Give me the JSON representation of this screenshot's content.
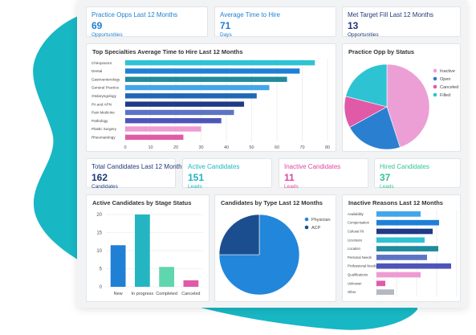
{
  "colors": {
    "background_blob": "#18b7c4",
    "kpi_blue": "#1f7fd1",
    "kpi_navy": "#20397a",
    "kpi_teal": "#1fb3c2",
    "kpi_pink": "#e0459f",
    "kpi_green": "#33c48f"
  },
  "kpis": {
    "practice_opps": {
      "title": "Practice Opps Last 12 Months",
      "value": "69",
      "unit": "Opportunities"
    },
    "avg_time_to_hire": {
      "title": "Average Time to Hire",
      "value": "71",
      "unit": "Days"
    },
    "met_target_fill": {
      "title": "Met Target Fill Last 12 Months",
      "value": "13",
      "unit": "Opportunities"
    },
    "total_candidates": {
      "title": "Total Candidates Last 12 Months",
      "value": "162",
      "unit": "Candidates"
    },
    "active_candidates": {
      "title": "Active Candidates",
      "value": "151",
      "unit": "Leads"
    },
    "inactive_candidates": {
      "title": "Inactive Candidates",
      "value": "11",
      "unit": "Leads"
    },
    "hired_candidates": {
      "title": "Hired Candidates",
      "value": "37",
      "unit": "Leads"
    }
  },
  "panels": {
    "specialties": {
      "title": "Top Specialties Average Time to Hire Last 12 Months"
    },
    "opp_status": {
      "title": "Practice Opp by Status"
    },
    "stage_status": {
      "title": "Active Candidates by Stage Status"
    },
    "by_type": {
      "title": "Candidates by Type  Last 12 Months"
    },
    "inactive_reasons": {
      "title": "Inactive Reasons Last 12 Months"
    }
  },
  "chart_data": [
    {
      "id": "specialties",
      "type": "bar",
      "orientation": "horizontal",
      "title": "Top Specialties Average Time to Hire Last 12 Months",
      "categories": [
        "Chiropractor",
        "Dental",
        "Gastroenterology",
        "General Practice",
        "Otolaryngology",
        "PA and APN",
        "Pain Medicine",
        "Pathology",
        "Plastic Surgery",
        "Rheumatology"
      ],
      "values": [
        75,
        69,
        64,
        57,
        52,
        47,
        43,
        38,
        30,
        23
      ],
      "colors": [
        "#2ec3d3",
        "#1e80d6",
        "#1f8b9c",
        "#41a6ea",
        "#1f66b6",
        "#1f3a86",
        "#5d73c4",
        "#4f55b8",
        "#ee9bd3",
        "#e05aa8"
      ],
      "xticks": [
        0,
        10,
        20,
        30,
        40,
        50,
        60,
        70,
        80
      ],
      "xlim": [
        0,
        80
      ],
      "grid": true
    },
    {
      "id": "opp_status",
      "type": "pie",
      "title": "Practice Opp by Status",
      "labels": [
        "Inactive",
        "Open",
        "Canceled",
        "Filled"
      ],
      "values": [
        45,
        22,
        12,
        21
      ],
      "colors": [
        "#ec9fd5",
        "#2b7fd0",
        "#e05aa8",
        "#2ec3d3"
      ],
      "legend": "right"
    },
    {
      "id": "stage_status",
      "type": "bar",
      "title": "Active Candidates by Stage Status",
      "categories": [
        "New",
        "In progress",
        "Completed",
        "Canceled"
      ],
      "values": [
        11.5,
        20,
        5.5,
        1.8
      ],
      "colors": [
        "#1f80d6",
        "#25b5c2",
        "#5fd6ad",
        "#e05aa8"
      ],
      "yticks": [
        0,
        5,
        10,
        15,
        20
      ],
      "ylim": [
        0,
        20
      ],
      "grid": true
    },
    {
      "id": "by_type",
      "type": "pie",
      "title": "Candidates by Type  Last 12 Months",
      "labels": [
        "Physician",
        "ACP"
      ],
      "values": [
        75,
        25
      ],
      "colors": [
        "#2287db",
        "#1b4e8f"
      ],
      "legend": "right"
    },
    {
      "id": "inactive_reasons",
      "type": "bar",
      "orientation": "horizontal",
      "title": "Inactive Reasons Last 12 Months",
      "categories": [
        "Availability",
        "Compensation",
        "Cultural Fit",
        "Licensure",
        "Location",
        "Personal Needs",
        "Professional Needs",
        "Qualifications",
        "Unknown",
        "Other"
      ],
      "values": [
        5.5,
        7.8,
        7.0,
        6.0,
        7.7,
        6.3,
        9.3,
        5.5,
        1.1,
        2.2
      ],
      "colors": [
        "#41a6ea",
        "#1e80d6",
        "#1f3a86",
        "#2ec3d3",
        "#1f8b9c",
        "#5d73c4",
        "#4f55b8",
        "#ee9bd3",
        "#e05aa8",
        "#b3b8c4"
      ],
      "xlim": [
        0,
        10
      ],
      "grid": true
    }
  ]
}
